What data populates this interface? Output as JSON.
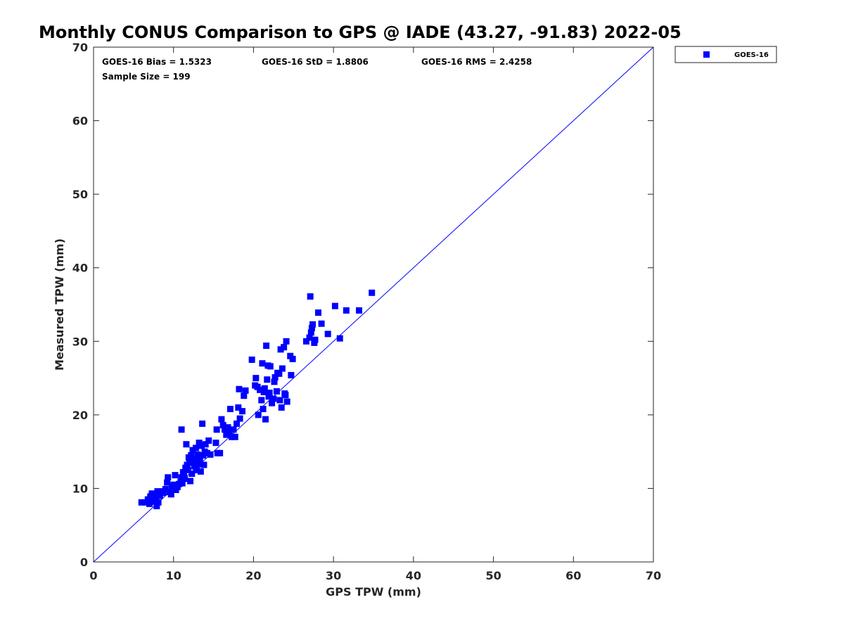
{
  "chart_data": {
    "type": "scatter",
    "title": "Monthly CONUS Comparison to GPS @ IADE (43.27, -91.83) 2022-05",
    "xlabel": "GPS TPW (mm)",
    "ylabel": "Measured TPW (mm)",
    "xlim": [
      0,
      70
    ],
    "ylim": [
      0,
      70
    ],
    "xticks": [
      "0",
      "10",
      "20",
      "30",
      "40",
      "50",
      "60",
      "70"
    ],
    "yticks": [
      "0",
      "10",
      "20",
      "30",
      "40",
      "50",
      "60",
      "70"
    ],
    "grid": false,
    "legend_position": "outside-top-right",
    "reference_line": {
      "from": [
        0,
        0
      ],
      "to": [
        70,
        70
      ],
      "color": "#0000ff"
    },
    "annotations": {
      "bias": "GOES-16 Bias = 1.5323",
      "std": "GOES-16 StD = 1.8806",
      "rms": "GOES-16 RMS = 2.4258",
      "sample": "Sample Size = 199"
    },
    "series": [
      {
        "name": "GOES-16",
        "color": "#0000ff",
        "marker": "square",
        "points": [
          [
            6.0,
            8.1
          ],
          [
            6.5,
            8.1
          ],
          [
            6.8,
            8.5
          ],
          [
            7.0,
            7.9
          ],
          [
            7.1,
            8.9
          ],
          [
            7.3,
            9.3
          ],
          [
            7.5,
            8.2
          ],
          [
            7.8,
            8.8
          ],
          [
            7.9,
            7.6
          ],
          [
            8.0,
            9.6
          ],
          [
            8.1,
            8.1
          ],
          [
            8.3,
            9.0
          ],
          [
            8.5,
            9.6
          ],
          [
            8.7,
            9.4
          ],
          [
            9.0,
            9.9
          ],
          [
            9.2,
            10.8
          ],
          [
            9.3,
            11.5
          ],
          [
            9.5,
            9.5
          ],
          [
            9.7,
            9.2
          ],
          [
            9.8,
            10.2
          ],
          [
            10.0,
            10.5
          ],
          [
            10.2,
            11.8
          ],
          [
            10.3,
            9.8
          ],
          [
            10.5,
            10.2
          ],
          [
            10.7,
            10.6
          ],
          [
            10.9,
            10.9
          ],
          [
            11.0,
            11.5
          ],
          [
            11.1,
            10.7
          ],
          [
            11.2,
            12.2
          ],
          [
            11.3,
            11.9
          ],
          [
            11.4,
            11.3
          ],
          [
            11.5,
            12.8
          ],
          [
            11.6,
            16.0
          ],
          [
            11.7,
            13.2
          ],
          [
            11.8,
            12.5
          ],
          [
            11.9,
            14.2
          ],
          [
            12.0,
            13.5
          ],
          [
            12.1,
            11.0
          ],
          [
            12.2,
            14.5
          ],
          [
            12.3,
            12.0
          ],
          [
            12.4,
            15.2
          ],
          [
            12.5,
            13.8
          ],
          [
            12.6,
            13.0
          ],
          [
            12.7,
            14.0
          ],
          [
            12.8,
            15.5
          ],
          [
            12.9,
            12.5
          ],
          [
            13.0,
            14.6
          ],
          [
            13.1,
            13.3
          ],
          [
            13.2,
            16.2
          ],
          [
            13.3,
            14.0
          ],
          [
            13.4,
            12.3
          ],
          [
            13.5,
            15.8
          ],
          [
            13.6,
            18.8
          ],
          [
            13.7,
            14.5
          ],
          [
            13.8,
            13.2
          ],
          [
            13.9,
            15.0
          ],
          [
            14.0,
            16.0
          ],
          [
            14.2,
            14.8
          ],
          [
            14.4,
            16.5
          ],
          [
            14.6,
            14.6
          ],
          [
            11.0,
            18.0
          ],
          [
            15.3,
            16.2
          ],
          [
            15.5,
            14.8
          ],
          [
            15.4,
            18.0
          ],
          [
            15.8,
            14.8
          ],
          [
            16.0,
            19.4
          ],
          [
            16.2,
            18.6
          ],
          [
            16.4,
            18.0
          ],
          [
            16.6,
            17.3
          ],
          [
            16.8,
            18.3
          ],
          [
            17.0,
            17.6
          ],
          [
            17.1,
            20.8
          ],
          [
            17.3,
            17.0
          ],
          [
            17.5,
            18.0
          ],
          [
            17.7,
            17.0
          ],
          [
            17.9,
            18.8
          ],
          [
            18.1,
            21.0
          ],
          [
            18.2,
            23.5
          ],
          [
            18.3,
            19.5
          ],
          [
            18.6,
            20.5
          ],
          [
            18.8,
            22.6
          ],
          [
            19.0,
            23.3
          ],
          [
            19.8,
            27.5
          ],
          [
            20.2,
            24.0
          ],
          [
            20.3,
            25.0
          ],
          [
            20.5,
            23.8
          ],
          [
            20.6,
            20.0
          ],
          [
            20.8,
            23.4
          ],
          [
            21.0,
            22.0
          ],
          [
            21.1,
            27.0
          ],
          [
            21.2,
            20.8
          ],
          [
            21.3,
            23.1
          ],
          [
            21.4,
            23.6
          ],
          [
            21.5,
            19.4
          ],
          [
            21.6,
            29.4
          ],
          [
            21.7,
            24.8
          ],
          [
            21.8,
            26.7
          ],
          [
            21.9,
            22.5
          ],
          [
            22.0,
            23.0
          ],
          [
            22.1,
            26.6
          ],
          [
            22.3,
            21.6
          ],
          [
            22.5,
            22.2
          ],
          [
            22.6,
            24.5
          ],
          [
            22.7,
            25.1
          ],
          [
            22.9,
            23.2
          ],
          [
            23.0,
            25.7
          ],
          [
            23.2,
            25.6
          ],
          [
            23.3,
            22.0
          ],
          [
            23.4,
            28.9
          ],
          [
            23.5,
            21.0
          ],
          [
            23.6,
            26.3
          ],
          [
            23.8,
            29.2
          ],
          [
            23.9,
            22.9
          ],
          [
            24.0,
            22.7
          ],
          [
            24.1,
            30.0
          ],
          [
            24.2,
            21.8
          ],
          [
            24.6,
            28.0
          ],
          [
            24.7,
            25.4
          ],
          [
            24.9,
            27.6
          ],
          [
            26.6,
            30.0
          ],
          [
            27.0,
            30.5
          ],
          [
            27.1,
            36.1
          ],
          [
            27.2,
            31.2
          ],
          [
            27.3,
            31.8
          ],
          [
            27.4,
            32.3
          ],
          [
            27.6,
            29.8
          ],
          [
            27.7,
            30.2
          ],
          [
            28.1,
            33.9
          ],
          [
            28.5,
            32.4
          ],
          [
            29.3,
            31.0
          ],
          [
            30.2,
            34.8
          ],
          [
            30.8,
            30.4
          ],
          [
            31.6,
            34.2
          ],
          [
            33.2,
            34.2
          ],
          [
            34.8,
            36.6
          ]
        ]
      }
    ]
  }
}
